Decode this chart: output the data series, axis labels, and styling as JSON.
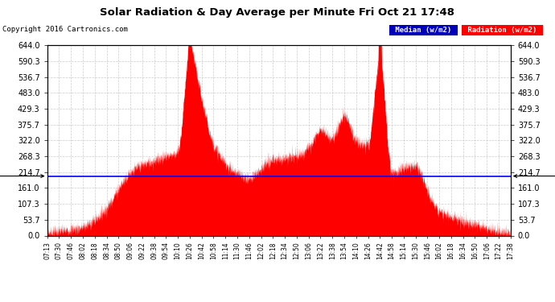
{
  "title": "Solar Radiation & Day Average per Minute Fri Oct 21 17:48",
  "copyright": "Copyright 2016 Cartronics.com",
  "median_value": 201.48,
  "y_min": 0.0,
  "y_max": 644.0,
  "y_ticks": [
    0.0,
    53.7,
    107.3,
    161.0,
    214.7,
    268.3,
    322.0,
    375.7,
    429.3,
    483.0,
    536.7,
    590.3,
    644.0
  ],
  "radiation_color": "#FF0000",
  "median_color": "#0000FF",
  "background_color": "#FFFFFF",
  "grid_color": "#CCCCCC",
  "legend_median_bg": "#0000BB",
  "legend_radiation_bg": "#FF0000",
  "legend_median_text": "Median (w/m2)",
  "legend_radiation_text": "Radiation (w/m2)",
  "x_tick_labels": [
    "07:13",
    "07:30",
    "07:46",
    "08:02",
    "08:18",
    "08:34",
    "08:50",
    "09:06",
    "09:22",
    "09:38",
    "09:54",
    "10:10",
    "10:26",
    "10:42",
    "10:58",
    "11:14",
    "11:30",
    "11:46",
    "12:02",
    "12:18",
    "12:34",
    "12:50",
    "13:06",
    "13:22",
    "13:38",
    "13:54",
    "14:10",
    "14:26",
    "14:42",
    "14:58",
    "15:14",
    "15:30",
    "15:46",
    "16:02",
    "16:18",
    "16:34",
    "16:50",
    "17:06",
    "17:22",
    "17:38"
  ],
  "profile_x": [
    0,
    1,
    2,
    3,
    4,
    5,
    6,
    7,
    8,
    9,
    10,
    11,
    12,
    13,
    14,
    15,
    16,
    17,
    18,
    19,
    20,
    21,
    22,
    23,
    24,
    25,
    26,
    27,
    28,
    29,
    30,
    31,
    32,
    33,
    34,
    35,
    36,
    37,
    38,
    39
  ],
  "profile_y": [
    10,
    15,
    22,
    30,
    55,
    95,
    160,
    215,
    240,
    255,
    270,
    285,
    630,
    460,
    310,
    245,
    210,
    195,
    230,
    255,
    265,
    270,
    300,
    360,
    330,
    410,
    320,
    310,
    600,
    210,
    230,
    235,
    150,
    80,
    65,
    50,
    38,
    25,
    15,
    8
  ]
}
